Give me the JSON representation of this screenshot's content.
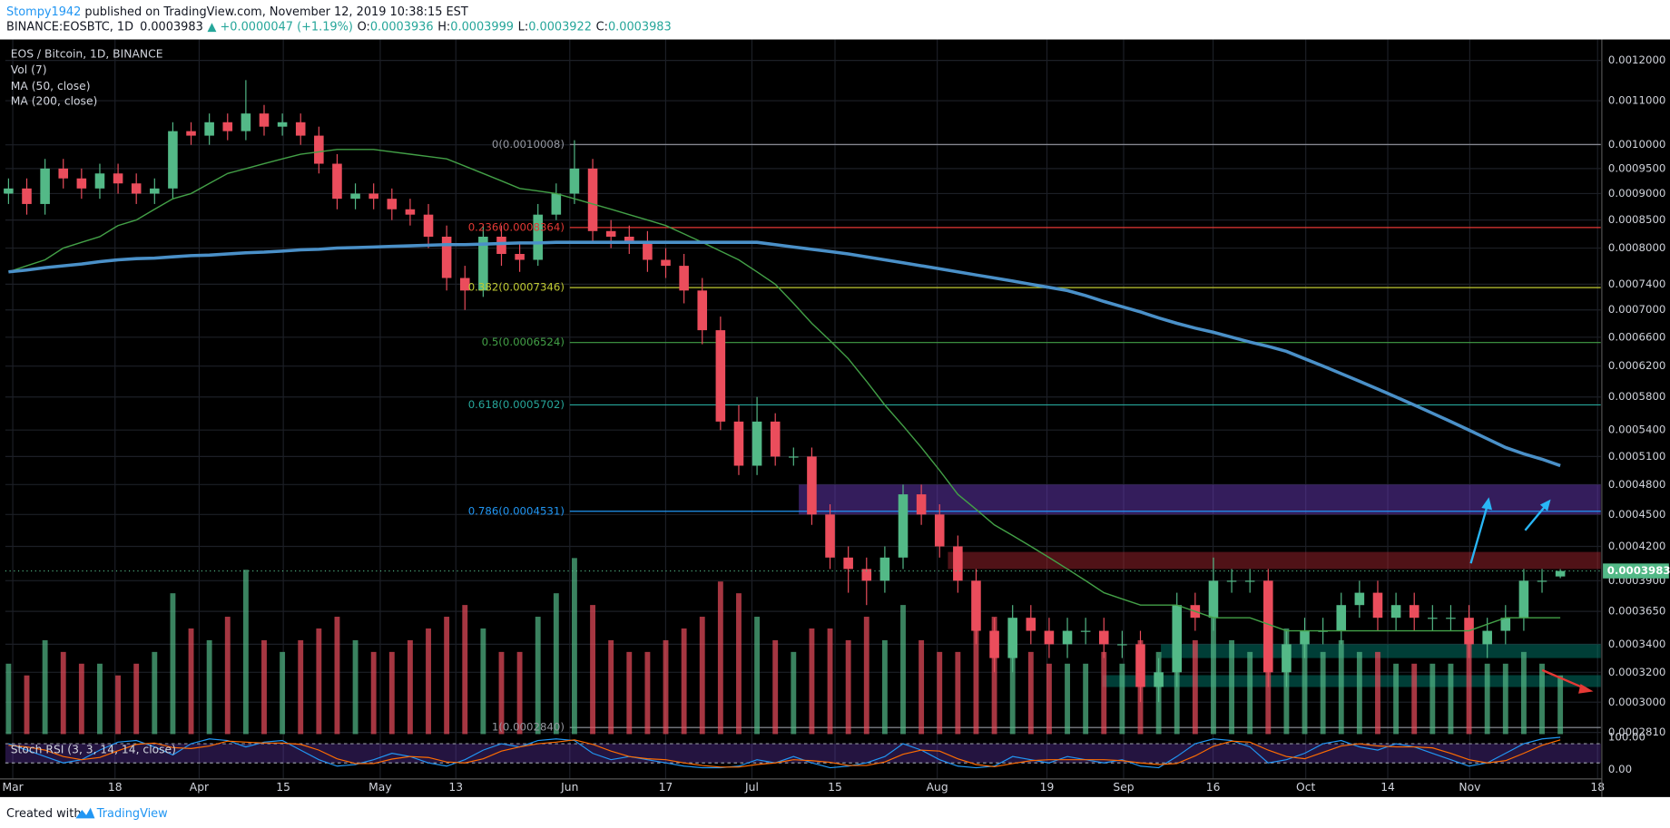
{
  "header": {
    "author": "Stompy1942",
    "published": " published on TradingView.com, November 12, 2019 10:38:15 EST",
    "symbol": "BINANCE:EOSBTC, 1D",
    "change": "▲ +0.0000047 (+1.19%)",
    "o": "O:",
    "h": "H:",
    "l": "L:",
    "c": "C:"
  },
  "footer": {
    "created": "Created with",
    "brand": "TradingView"
  },
  "chart_data": {
    "type": "candlestick",
    "title": "EOS / Bitcoin, 1D, BINANCE",
    "volume_label": "Vol (7)",
    "log_scale": true,
    "grid": true,
    "up_color": "#53b987",
    "down_color": "#eb4d5c",
    "xticks": [
      "Mar",
      "18",
      "Apr",
      "15",
      "May",
      "13",
      "Jun",
      "17",
      "Jul",
      "15",
      "Aug",
      "19",
      "Sep",
      "16",
      "Oct",
      "14",
      "Nov",
      "18"
    ],
    "ylim": [
      0.00028,
      0.00133
    ],
    "yticks": [
      {
        "value": 0.0012,
        "label": "0.0012000"
      },
      {
        "value": 0.0011,
        "label": "0.0011000"
      },
      {
        "value": 0.001,
        "label": "0.0010000"
      },
      {
        "value": 0.00095,
        "label": "0.0009500"
      },
      {
        "value": 0.0009,
        "label": "0.0009000"
      },
      {
        "value": 0.00085,
        "label": "0.0008500"
      },
      {
        "value": 0.0008,
        "label": "0.0008000"
      },
      {
        "value": 0.00074,
        "label": "0.0007400"
      },
      {
        "value": 0.0007,
        "label": "0.0007000"
      },
      {
        "value": 0.00066,
        "label": "0.0006600"
      },
      {
        "value": 0.00062,
        "label": "0.0006200"
      },
      {
        "value": 0.00058,
        "label": "0.0005800"
      },
      {
        "value": 0.00054,
        "label": "0.0005400"
      },
      {
        "value": 0.00051,
        "label": "0.0005100"
      },
      {
        "value": 0.00048,
        "label": "0.0004800"
      },
      {
        "value": 0.00045,
        "label": "0.0004500"
      },
      {
        "value": 0.00042,
        "label": "0.0004200"
      },
      {
        "value": 0.00039,
        "label": "0.0003900"
      },
      {
        "value": 0.000365,
        "label": "0.0003650"
      },
      {
        "value": 0.00034,
        "label": "0.0003400"
      },
      {
        "value": 0.00032,
        "label": "0.0003200"
      },
      {
        "value": 0.0003,
        "label": "0.0003000"
      },
      {
        "value": 0.000281,
        "label": "0.0002810"
      }
    ],
    "open": [
      0.0009,
      0.00091,
      0.00088,
      0.00095,
      0.00093,
      0.00091,
      0.00094,
      0.00092,
      0.0009,
      0.00091,
      0.00103,
      0.00102,
      0.00105,
      0.00103,
      0.00107,
      0.00104,
      0.00105,
      0.00102,
      0.00096,
      0.00089,
      0.0009,
      0.00089,
      0.00087,
      0.00086,
      0.00082,
      0.00075,
      0.00073,
      0.00082,
      0.00079,
      0.00078,
      0.00086,
      0.0009,
      0.00095,
      0.00083,
      0.00082,
      0.00081,
      0.00078,
      0.00077,
      0.00073,
      0.00067,
      0.00055,
      0.0005,
      0.00055,
      0.00051,
      0.00051,
      0.00045,
      0.00041,
      0.0004,
      0.00039,
      0.00041,
      0.00047,
      0.00045,
      0.00042,
      0.00039,
      0.00035,
      0.00033,
      0.00036,
      0.00035,
      0.00034,
      0.00035,
      0.00035,
      0.00034,
      0.00034,
      0.00031,
      0.00032,
      0.00037,
      0.00036,
      0.00039,
      0.00039,
      0.00039,
      0.00032,
      0.00034,
      0.00035,
      0.00035,
      0.00037,
      0.00038,
      0.00036,
      0.00037,
      0.00036,
      0.00036,
      0.00036,
      0.00034,
      0.00035,
      0.00036,
      0.00039,
      0.0003936
    ],
    "high": [
      0.00093,
      0.00093,
      0.00097,
      0.00097,
      0.00095,
      0.00096,
      0.00096,
      0.00094,
      0.00093,
      0.00105,
      0.00105,
      0.00107,
      0.00107,
      0.00115,
      0.00109,
      0.00107,
      0.00107,
      0.00104,
      0.00098,
      0.00092,
      0.00092,
      0.00091,
      0.00089,
      0.00088,
      0.00084,
      0.00077,
      0.00084,
      0.00084,
      0.00081,
      0.00088,
      0.00092,
      0.00101,
      0.00097,
      0.00085,
      0.00084,
      0.00083,
      0.0008,
      0.00079,
      0.00075,
      0.00069,
      0.00057,
      0.00058,
      0.00056,
      0.00052,
      0.00052,
      0.00046,
      0.00042,
      0.00041,
      0.00042,
      0.00048,
      0.00048,
      0.00046,
      0.00043,
      0.0004,
      0.00036,
      0.00037,
      0.00037,
      0.00036,
      0.00036,
      0.00036,
      0.00036,
      0.00035,
      0.00035,
      0.00033,
      0.00038,
      0.00038,
      0.00041,
      0.0004,
      0.0004,
      0.0004,
      0.00035,
      0.00036,
      0.00036,
      0.00038,
      0.00039,
      0.00039,
      0.00038,
      0.00038,
      0.00037,
      0.00037,
      0.00037,
      0.00036,
      0.00037,
      0.0004,
      0.0004,
      0.0003999
    ],
    "low": [
      0.00088,
      0.00086,
      0.00086,
      0.00091,
      0.00089,
      0.00089,
      0.0009,
      0.00088,
      0.00088,
      0.00089,
      0.001,
      0.001,
      0.00101,
      0.00101,
      0.00102,
      0.00102,
      0.001,
      0.00094,
      0.00087,
      0.00087,
      0.00087,
      0.00085,
      0.00084,
      0.0008,
      0.00073,
      0.0007,
      0.00072,
      0.00077,
      0.00076,
      0.00077,
      0.00085,
      0.00088,
      0.00081,
      0.0008,
      0.00079,
      0.00076,
      0.00075,
      0.00071,
      0.00065,
      0.00054,
      0.00049,
      0.00049,
      0.0005,
      0.0005,
      0.00044,
      0.0004,
      0.00038,
      0.00037,
      0.00038,
      0.0004,
      0.00044,
      0.00041,
      0.00038,
      0.00034,
      0.00032,
      0.00032,
      0.00034,
      0.00033,
      0.00033,
      0.00034,
      0.00033,
      0.00033,
      0.0003,
      0.0003,
      0.00031,
      0.00035,
      0.00035,
      0.00038,
      0.00038,
      0.00031,
      0.00031,
      0.00033,
      0.00034,
      0.00034,
      0.00036,
      0.00035,
      0.00035,
      0.00035,
      0.00035,
      0.00035,
      0.00033,
      0.00033,
      0.00034,
      0.00035,
      0.00038,
      0.0003922
    ],
    "close": [
      0.00091,
      0.00088,
      0.00095,
      0.00093,
      0.00091,
      0.00094,
      0.00092,
      0.0009,
      0.00091,
      0.00103,
      0.00102,
      0.00105,
      0.00103,
      0.00107,
      0.00104,
      0.00105,
      0.00102,
      0.00096,
      0.00089,
      0.0009,
      0.00089,
      0.00087,
      0.00086,
      0.00082,
      0.00075,
      0.00073,
      0.00082,
      0.00079,
      0.00078,
      0.00086,
      0.0009,
      0.00095,
      0.00083,
      0.00082,
      0.00081,
      0.00078,
      0.00077,
      0.00073,
      0.00067,
      0.00055,
      0.0005,
      0.00055,
      0.00051,
      0.00051,
      0.00045,
      0.00041,
      0.0004,
      0.00039,
      0.00041,
      0.00047,
      0.00045,
      0.00042,
      0.00039,
      0.00035,
      0.00033,
      0.00036,
      0.00035,
      0.00034,
      0.00035,
      0.00035,
      0.00034,
      0.00034,
      0.00031,
      0.00032,
      0.00037,
      0.00036,
      0.00039,
      0.00039,
      0.00039,
      0.00032,
      0.00034,
      0.00035,
      0.00035,
      0.00037,
      0.00038,
      0.00036,
      0.00037,
      0.00036,
      0.00036,
      0.00036,
      0.00034,
      0.00035,
      0.00036,
      0.00039,
      0.00039,
      0.0003983
    ],
    "volume": [
      30,
      25,
      40,
      35,
      30,
      30,
      25,
      30,
      35,
      60,
      45,
      40,
      50,
      70,
      40,
      35,
      40,
      45,
      50,
      40,
      35,
      35,
      40,
      45,
      50,
      55,
      45,
      35,
      35,
      50,
      60,
      75,
      55,
      40,
      35,
      35,
      40,
      45,
      50,
      65,
      60,
      50,
      40,
      35,
      45,
      45,
      40,
      50,
      40,
      55,
      40,
      35,
      35,
      45,
      50,
      40,
      35,
      30,
      30,
      30,
      35,
      30,
      40,
      35,
      45,
      40,
      50,
      40,
      35,
      60,
      45,
      40,
      35,
      40,
      35,
      35,
      30,
      30,
      30,
      30,
      40,
      30,
      30,
      35,
      30,
      25
    ],
    "series": [
      {
        "name": "MA (50, close)",
        "color": "#43a047",
        "values": [
          0.00076,
          0.00077,
          0.00078,
          0.0008,
          0.00081,
          0.00082,
          0.00084,
          0.00085,
          0.00087,
          0.00089,
          0.0009,
          0.00092,
          0.00094,
          0.00095,
          0.00096,
          0.00097,
          0.00098,
          0.000985,
          0.00099,
          0.00099,
          0.00099,
          0.000985,
          0.00098,
          0.000975,
          0.00097,
          0.000955,
          0.00094,
          0.000925,
          0.00091,
          0.000905,
          0.0009,
          0.00089,
          0.00088,
          0.00087,
          0.00086,
          0.00085,
          0.00084,
          0.000825,
          0.00081,
          0.000795,
          0.00078,
          0.00076,
          0.00074,
          0.00071,
          0.00068,
          0.000655,
          0.00063,
          0.0006,
          0.00057,
          0.000545,
          0.00052,
          0.000495,
          0.00047,
          0.000455,
          0.00044,
          0.00043,
          0.00042,
          0.00041,
          0.0004,
          0.00039,
          0.00038,
          0.000375,
          0.00037,
          0.00037,
          0.00037,
          0.000365,
          0.00036,
          0.00036,
          0.00036,
          0.000355,
          0.00035,
          0.00035,
          0.00035,
          0.00035,
          0.00035,
          0.00035,
          0.00035,
          0.00035,
          0.00035,
          0.00035,
          0.00035,
          0.000355,
          0.00036,
          0.00036,
          0.00036,
          0.00036
        ]
      },
      {
        "name": "MA (200, close)",
        "color": "#4a90c8",
        "values": [
          0.00076,
          0.000763,
          0.000767,
          0.00077,
          0.000773,
          0.000777,
          0.00078,
          0.000782,
          0.000783,
          0.000785,
          0.000787,
          0.000788,
          0.00079,
          0.000792,
          0.000793,
          0.000795,
          0.000797,
          0.000798,
          0.0008,
          0.000801,
          0.000802,
          0.000803,
          0.000804,
          0.000805,
          0.000806,
          0.000806,
          0.000807,
          0.000808,
          0.000809,
          0.000809,
          0.00081,
          0.00081,
          0.00081,
          0.00081,
          0.00081,
          0.00081,
          0.00081,
          0.00081,
          0.00081,
          0.00081,
          0.00081,
          0.00081,
          0.000806,
          0.000802,
          0.000798,
          0.000794,
          0.00079,
          0.000785,
          0.00078,
          0.000775,
          0.00077,
          0.000765,
          0.00076,
          0.000755,
          0.00075,
          0.000745,
          0.00074,
          0.000735,
          0.00073,
          0.000722,
          0.000713,
          0.000705,
          0.000697,
          0.000688,
          0.00068,
          0.000673,
          0.000667,
          0.00066,
          0.000653,
          0.000647,
          0.00064,
          0.00063,
          0.00062,
          0.00061,
          0.0006,
          0.00059,
          0.00058,
          0.00057,
          0.00056,
          0.00055,
          0.00054,
          0.00053,
          0.00052,
          0.000513,
          0.000507,
          0.0005
        ]
      }
    ],
    "fib": [
      {
        "label": "0(0.0010008)",
        "value": 0.0010008,
        "color": "#9598a1"
      },
      {
        "label": "0.236(0.0008364)",
        "value": 0.0008364,
        "color": "#e53935"
      },
      {
        "label": "0.382(0.0007346)",
        "value": 0.0007346,
        "color": "#c0ca33"
      },
      {
        "label": "0.5(0.0006524)",
        "value": 0.0006524,
        "color": "#43a047"
      },
      {
        "label": "0.618(0.0005702)",
        "value": 0.0005702,
        "color": "#26a69a"
      },
      {
        "label": "0.786(0.0004531)",
        "value": 0.0004531,
        "color": "#2196f3"
      },
      {
        "label": "1(0.0002840)",
        "value": 0.000284,
        "color": "#9598a1"
      }
    ],
    "zones": [
      {
        "low": 0.00045,
        "high": 0.00048,
        "color": "rgba(103,58,183,0.5)"
      },
      {
        "low": 0.0004,
        "high": 0.000415,
        "color": "rgba(178,40,51,0.45)"
      },
      {
        "low": 0.00033,
        "high": 0.00034,
        "color": "rgba(0,137,123,0.45)"
      },
      {
        "low": 0.00031,
        "high": 0.000318,
        "color": "rgba(0,137,123,0.45)"
      }
    ],
    "stoch": {
      "name": "Stoch RSI (3, 3, 14, 14, close)",
      "ylim": [
        0,
        100
      ],
      "bands": [
        20,
        80
      ],
      "yticks": [
        {
          "value": 100,
          "label": "100.00"
        },
        {
          "value": 0,
          "label": "0.00"
        }
      ],
      "k_color": "#2196f3",
      "d_color": "#ff6d00",
      "k": [
        80,
        60,
        40,
        20,
        30,
        60,
        85,
        90,
        70,
        45,
        80,
        95,
        90,
        70,
        85,
        90,
        60,
        30,
        10,
        15,
        30,
        50,
        40,
        20,
        10,
        30,
        60,
        80,
        70,
        90,
        95,
        90,
        50,
        30,
        40,
        30,
        20,
        10,
        5,
        5,
        10,
        30,
        20,
        40,
        20,
        5,
        10,
        20,
        40,
        80,
        60,
        30,
        10,
        5,
        10,
        40,
        30,
        20,
        40,
        30,
        20,
        30,
        10,
        5,
        40,
        80,
        95,
        90,
        70,
        20,
        30,
        50,
        80,
        90,
        70,
        60,
        80,
        70,
        50,
        30,
        10,
        20,
        50,
        80,
        95,
        100
      ],
      "d": [
        75,
        70,
        60,
        40,
        30,
        37,
        58,
        78,
        82,
        68,
        65,
        73,
        88,
        85,
        82,
        82,
        78,
        60,
        33,
        18,
        18,
        32,
        40,
        37,
        23,
        20,
        33,
        57,
        70,
        80,
        85,
        92,
        78,
        57,
        40,
        33,
        30,
        20,
        12,
        7,
        7,
        15,
        20,
        30,
        27,
        22,
        12,
        12,
        23,
        47,
        60,
        57,
        33,
        15,
        8,
        18,
        27,
        30,
        30,
        30,
        30,
        27,
        20,
        15,
        18,
        42,
        72,
        88,
        85,
        60,
        40,
        33,
        53,
        73,
        80,
        73,
        70,
        70,
        67,
        50,
        30,
        20,
        27,
        50,
        75,
        92
      ]
    }
  }
}
